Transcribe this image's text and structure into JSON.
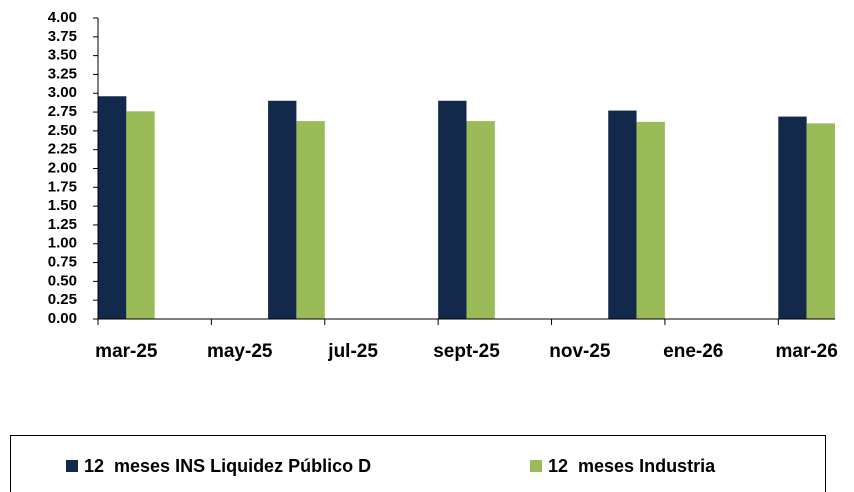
{
  "chart_data": {
    "type": "bar",
    "categories": [
      "mar-25",
      null,
      "may-25",
      null,
      "jul-25",
      null,
      "sept-25",
      null,
      "nov-25",
      null,
      "ene-26",
      null,
      "mar-26"
    ],
    "series": [
      {
        "name": "12  meses INS Liquidez Público D",
        "color": "#13294b",
        "values": [
          2.96,
          null,
          null,
          2.9,
          null,
          null,
          2.9,
          null,
          null,
          2.77,
          null,
          null,
          2.69
        ]
      },
      {
        "name": "12  meses Industria",
        "color": "#9bbb59",
        "values": [
          2.76,
          null,
          null,
          2.63,
          null,
          null,
          2.63,
          null,
          null,
          2.62,
          null,
          null,
          2.6
        ]
      }
    ],
    "ylim": [
      0,
      4
    ],
    "yticks": [
      {
        "value": 0,
        "label": "0.00"
      },
      {
        "value": 0.25,
        "label": "0.25"
      },
      {
        "value": 0.5,
        "label": "0.50"
      },
      {
        "value": 0.75,
        "label": "0.75"
      },
      {
        "value": 1,
        "label": "1.00"
      },
      {
        "value": 1.25,
        "label": "1.25"
      },
      {
        "value": 1.5,
        "label": "1.50"
      },
      {
        "value": 1.75,
        "label": "1.75"
      },
      {
        "value": 2,
        "label": "2.00"
      },
      {
        "value": 2.25,
        "label": "2.25"
      },
      {
        "value": 2.5,
        "label": "2.50"
      },
      {
        "value": 2.75,
        "label": "2.75"
      },
      {
        "value": 3,
        "label": "3.00"
      },
      {
        "value": 3.25,
        "label": "3.25"
      },
      {
        "value": 3.5,
        "label": "3.50"
      },
      {
        "value": 3.75,
        "label": "3.75"
      },
      {
        "value": 4,
        "label": "4.00"
      }
    ],
    "grid": false,
    "legend": "bottom"
  }
}
